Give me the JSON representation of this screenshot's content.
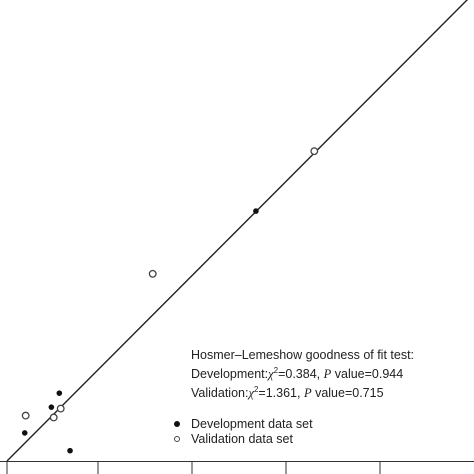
{
  "chart_data": {
    "type": "scatter",
    "title": "",
    "xlabel": "",
    "ylabel": "",
    "xlim": [
      0,
      1
    ],
    "ylim": [
      0,
      1
    ],
    "grid": false,
    "reference_line": {
      "x": [
        0,
        1
      ],
      "y": [
        0,
        1
      ]
    },
    "legend_position": "bottom-right",
    "series": [
      {
        "name": "Development data set",
        "marker": "filled",
        "color": "#111111",
        "points": [
          {
            "x": 0.038,
            "y": 0.06
          },
          {
            "x": 0.095,
            "y": 0.115
          },
          {
            "x": 0.112,
            "y": 0.145
          },
          {
            "x": 0.135,
            "y": 0.022
          },
          {
            "x": 0.533,
            "y": 0.534
          }
        ]
      },
      {
        "name": "Validation data set",
        "marker": "open",
        "color": "#444444",
        "points": [
          {
            "x": 0.04,
            "y": 0.097
          },
          {
            "x": 0.1,
            "y": 0.093
          },
          {
            "x": 0.115,
            "y": 0.112
          },
          {
            "x": 0.312,
            "y": 0.4
          },
          {
            "x": 0.658,
            "y": 0.662
          }
        ]
      }
    ],
    "annotation": {
      "heading": "Hosmer–Lemeshow goodness of fit test:",
      "dev_label": "Development:",
      "dev_chi": "=0.384,",
      "dev_p": "value=0.944",
      "val_label": "Validation:",
      "val_chi": "=1.361,",
      "val_p": "value=0.715",
      "chi_symbol": "χ",
      "superscript": "2",
      "p_symbol": "P"
    }
  }
}
